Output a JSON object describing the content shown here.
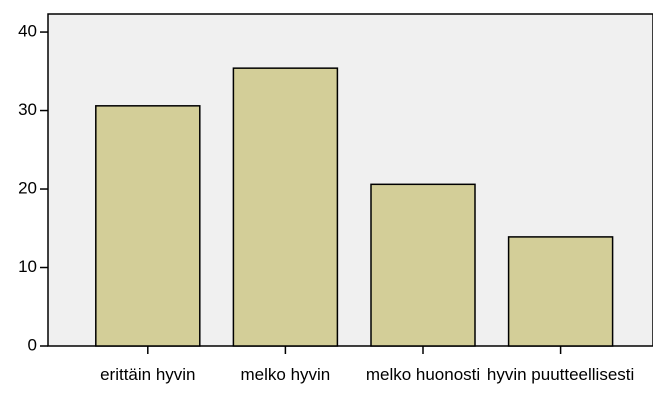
{
  "chart_data": {
    "type": "bar",
    "categories": [
      "erittäin hyvin",
      "melko hyvin",
      "melko huonosti",
      "hyvin puutteellisesti"
    ],
    "values": [
      30.6,
      35.4,
      20.6,
      13.9
    ],
    "color": "#d3ce98",
    "ylim": [
      0,
      42.3
    ],
    "yticks": [
      0,
      10,
      20,
      30,
      40
    ]
  }
}
